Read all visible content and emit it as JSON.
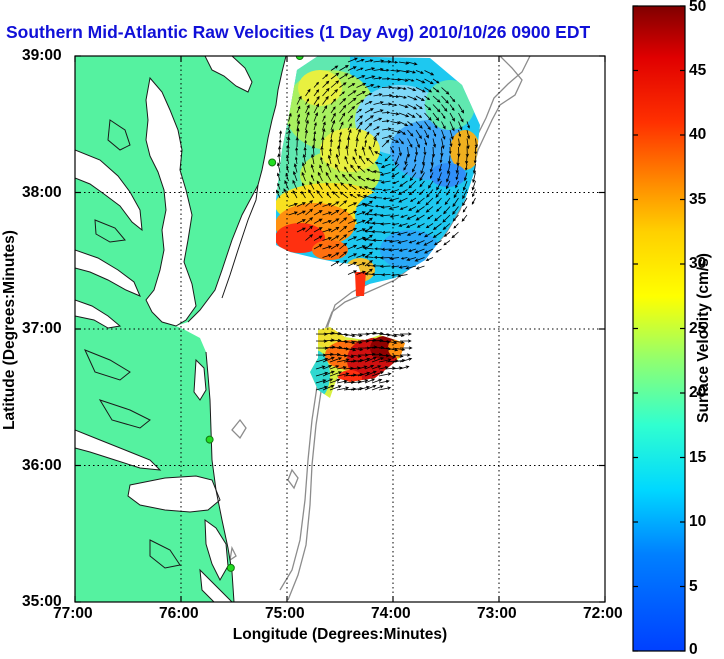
{
  "title": "Southern Mid-Atlantic Raw Velocities (1 Day Avg) 2010/10/26 0900 EDT",
  "chart_data": {
    "type": "map",
    "xlabel": "Longitude (Degrees:Minutes)",
    "ylabel": "Latitude (Degrees:Minutes)",
    "x_ticks": [
      "77:00",
      "76:00",
      "75:00",
      "74:00",
      "73:00",
      "72:00"
    ],
    "y_ticks": [
      "39:00",
      "38:00",
      "37:00",
      "36:00",
      "35:00"
    ],
    "xlim": [
      -77,
      -72
    ],
    "ylim": [
      35,
      39
    ],
    "grid": true,
    "colorbar": {
      "label": "Surface Velocity (cm/s)",
      "ticks": [
        "0",
        "5",
        "10",
        "15",
        "20",
        "25",
        "30",
        "35",
        "40",
        "45",
        "50"
      ],
      "range": [
        0,
        50
      ],
      "colormap": "jet"
    },
    "colors": {
      "land": "#55f2a0",
      "title": "#1010d8",
      "bathymetry": "#8c8c8c"
    },
    "radar_stations": [
      {
        "lon": -74.88,
        "lat": 39.0
      },
      {
        "lon": -75.14,
        "lat": 38.22
      },
      {
        "lon": -75.73,
        "lat": 36.19
      },
      {
        "lon": -75.53,
        "lat": 35.25
      }
    ]
  }
}
